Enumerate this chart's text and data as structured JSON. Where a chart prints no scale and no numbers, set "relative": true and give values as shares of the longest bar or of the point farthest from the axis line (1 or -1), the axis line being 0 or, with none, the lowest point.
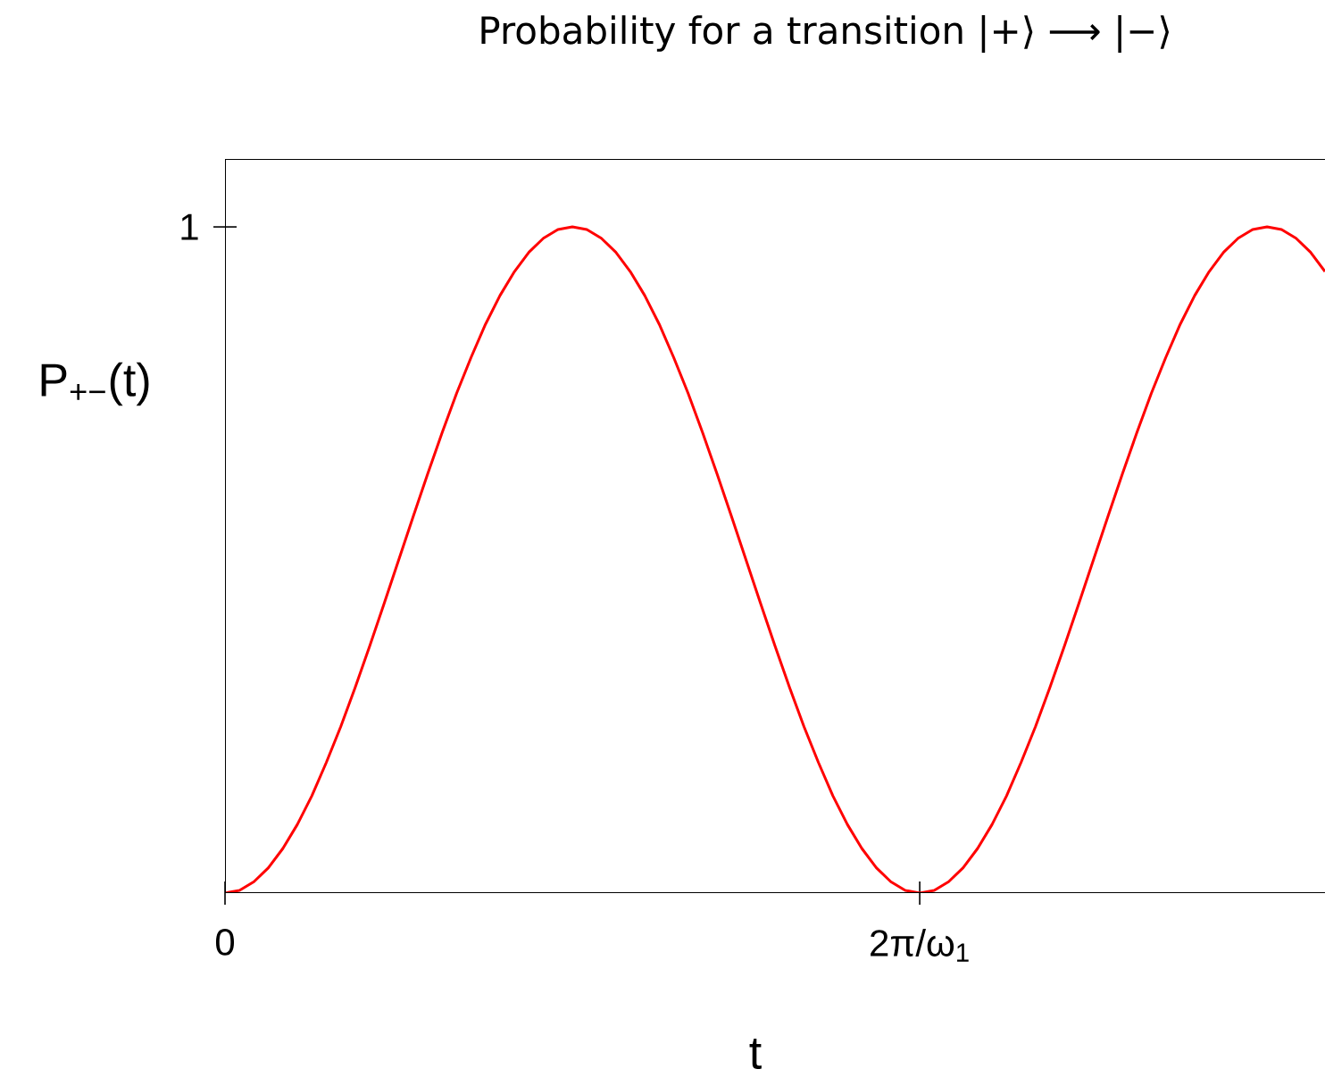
{
  "chart_data": {
    "type": "line",
    "title": "Probability for a transition |+⟩ ⟶ |−⟩",
    "xlabel": "t",
    "ylabel": "P$_{+−}$(t)",
    "relative": true,
    "categories": [
      "0",
      null,
      null,
      null,
      null,
      null,
      null,
      null,
      null,
      null,
      null,
      null,
      null,
      null,
      null,
      null,
      null,
      null,
      null,
      null,
      null,
      null,
      null,
      null,
      null,
      null,
      null,
      null,
      null,
      null,
      null,
      null,
      null,
      null,
      null,
      null,
      null,
      null,
      null,
      null,
      null,
      null,
      null,
      null,
      null,
      null,
      null,
      null,
      "2π/ω$_{1}$",
      null,
      null,
      null,
      null,
      null,
      null,
      null,
      null,
      null,
      null,
      null,
      null,
      null,
      null,
      null,
      null,
      null,
      null,
      null,
      null,
      null,
      null,
      null,
      null,
      null,
      null,
      null,
      null
    ],
    "values": [
      0,
      0.004,
      0.017,
      0.038,
      0.067,
      0.103,
      0.146,
      0.196,
      0.25,
      0.309,
      0.371,
      0.435,
      0.5,
      0.565,
      0.629,
      0.691,
      0.75,
      0.804,
      0.854,
      0.897,
      0.933,
      0.962,
      0.983,
      0.996,
      1,
      0.996,
      0.983,
      0.962,
      0.933,
      0.897,
      0.854,
      0.804,
      0.75,
      0.691,
      0.629,
      0.565,
      0.5,
      0.435,
      0.371,
      0.309,
      0.25,
      0.196,
      0.146,
      0.103,
      0.067,
      0.038,
      0.017,
      0.004,
      0,
      0.004,
      0.017,
      0.038,
      0.067,
      0.103,
      0.146,
      0.196,
      0.25,
      0.309,
      0.371,
      0.435,
      0.5,
      0.565,
      0.629,
      0.691,
      0.75,
      0.804,
      0.854,
      0.897,
      0.933,
      0.962,
      0.983,
      0.996,
      1,
      0.996,
      0.983,
      0.962,
      0.933
    ],
    "color": "#ff0000",
    "annotations": [
      "1"
    ]
  }
}
